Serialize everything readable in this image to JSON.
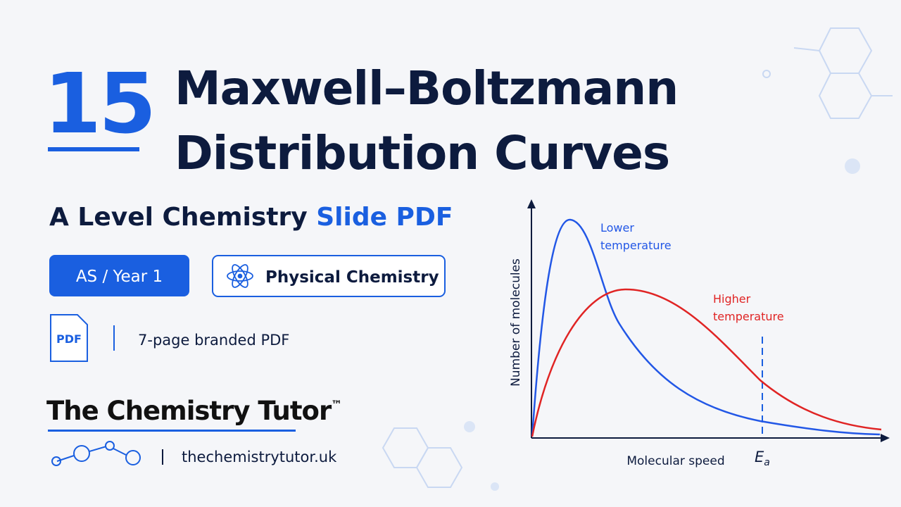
{
  "number": "15",
  "title": [
    "Maxwell–Boltzmann",
    "Distribution Curves"
  ],
  "subtitle": {
    "text": "A Level Chemistry",
    "highlight": "Slide PDF"
  },
  "badges": [
    "AS / Year 1",
    "Physical Chemistry"
  ],
  "pdf": {
    "icon": "PDF",
    "note": "7-page branded PDF"
  },
  "brand": {
    "name": "The Chemistry Tutor",
    "mark": "™",
    "url": "thechemistrytutor.uk"
  },
  "diagram": {
    "y_label": "Number of molecules",
    "x_label": "Molecular speed",
    "curves": [
      {
        "label": [
          "Lower",
          "temperature"
        ]
      },
      {
        "label": [
          "Higher",
          "temperature"
        ]
      }
    ],
    "marker": {
      "label": "E",
      "subscript": "a"
    }
  }
}
